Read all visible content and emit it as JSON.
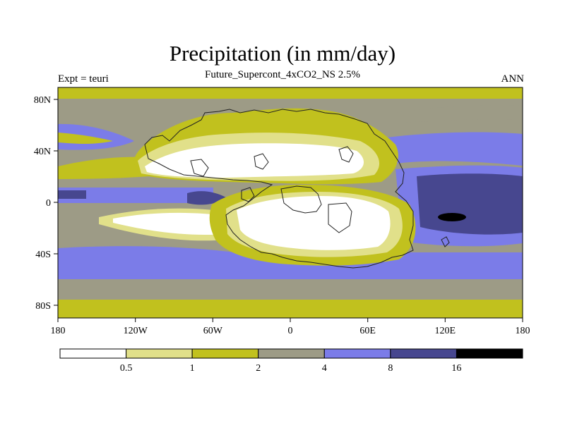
{
  "title": "Precipitation (in mm/day)",
  "subtitle": "Future_Supercont_4xCO2_NS 2.5%",
  "left_label": "Expt = teuri",
  "right_label": "ANN",
  "map": {
    "lon_ticks": [
      "180",
      "120W",
      "60W",
      "0",
      "60E",
      "120E",
      "180"
    ],
    "lat_ticks": [
      "80N",
      "40N",
      "0",
      "40S",
      "80S"
    ]
  },
  "colorbar": {
    "colors": [
      "#ffffff",
      "#e1e08a",
      "#c1c11e",
      "#9d9b86",
      "#7b7ce8",
      "#47478f",
      "#000000"
    ],
    "labels": [
      "0.5",
      "1",
      "2",
      "4",
      "8",
      "16"
    ]
  }
}
